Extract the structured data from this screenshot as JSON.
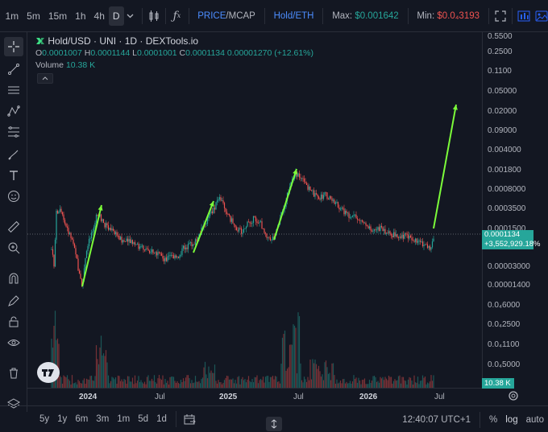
{
  "toolbar": {
    "timeframes": [
      "1m",
      "5m",
      "15m",
      "1h",
      "4h",
      "D"
    ],
    "active_timeframe": "D",
    "price_mcap_label_a": "PRICE",
    "price_mcap_sep": "/",
    "price_mcap_label_b": "MCAP",
    "pair_label": "Hold/ETH",
    "max_label": "Max:",
    "max_value": "$0.001642",
    "min_label": "Min:",
    "min_value": "$0.0₄3193"
  },
  "legend": {
    "title": "Hold/USD · UNI · 1D · DEXTools.io",
    "o_label": "O",
    "o_value": "0.0001007",
    "h_label": "H",
    "h_value": "0.0001144",
    "l_label": "L",
    "l_value": "0.0001001",
    "c_label": "C",
    "c_value": "0.0001134",
    "change": "0.00001270 (+12.61%)",
    "volume_label": "Volume",
    "volume_value": "10.38 K"
  },
  "price_axis": {
    "labels": [
      "0.5500",
      "0.2500",
      "0.1100",
      "0.05000",
      "0.02000",
      "0.09000",
      "0.004000",
      "0.001800",
      "0.0008000",
      "0.0003500",
      "0.0001500",
      "0.00003000",
      "0.00001400",
      "0.0₄6000",
      "0.0₄2500",
      "0.0₄1100",
      "0.0₄5000"
    ],
    "current_price": "0.0001134",
    "current_change": "+3,552,929.18%",
    "volume_tag": "10.38 K"
  },
  "time_axis": {
    "labels": [
      {
        "text": "2024",
        "bold": true
      },
      {
        "text": "Jul",
        "bold": false
      },
      {
        "text": "2025",
        "bold": true
      },
      {
        "text": "Jul",
        "bold": false
      },
      {
        "text": "2026",
        "bold": true
      },
      {
        "text": "Jul",
        "bold": false
      }
    ]
  },
  "bottom_bar": {
    "ranges": [
      "5y",
      "1y",
      "6m",
      "3m",
      "1m",
      "5d",
      "1d"
    ],
    "clock": "12:40:07 UTC+1",
    "percent_label": "%",
    "log_label": "log",
    "auto_label": "auto"
  },
  "colors": {
    "background": "#131722",
    "up": "#26a69a",
    "down": "#ef5350",
    "arrow": "#7cfc3a",
    "accent": "#2962ff"
  }
}
